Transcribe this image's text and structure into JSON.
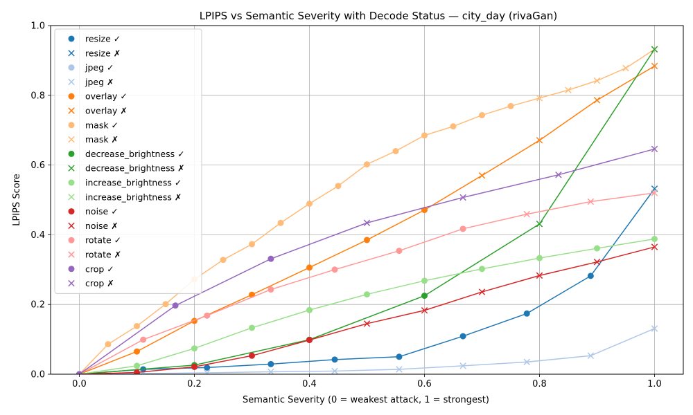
{
  "chart_data": {
    "type": "line",
    "title": "LPIPS vs Semantic Severity with Decode Status — city_day (rivaGan)",
    "xlabel": "Semantic Severity (0 = weakest attack, 1 = strongest)",
    "ylabel": "LPIPS Score",
    "xlim": [
      -0.05,
      1.05
    ],
    "ylim": [
      0,
      1.0
    ],
    "xticks": [
      "0.0",
      "0.2",
      "0.4",
      "0.6",
      "0.8",
      "1.0"
    ],
    "yticks": [
      "0.0",
      "0.2",
      "0.4",
      "0.6",
      "0.8",
      "1.0"
    ],
    "grid": true,
    "legend_position": "upper-left",
    "legend": [
      "resize ✓",
      "resize ✗",
      "jpeg ✓",
      "jpeg ✗",
      "overlay ✓",
      "overlay ✗",
      "mask ✓",
      "mask ✗",
      "decrease_brightness ✓",
      "decrease_brightness ✗",
      "increase_brightness ✓",
      "increase_brightness ✗",
      "noise ✓",
      "noise ✗",
      "rotate ✓",
      "rotate ✗",
      "crop ✓",
      "crop ✗"
    ],
    "series": [
      {
        "name": "resize",
        "color": "#1f77b4",
        "points": [
          {
            "x": 0.0,
            "y": 0.0,
            "ok": true
          },
          {
            "x": 0.111,
            "y": 0.014,
            "ok": true
          },
          {
            "x": 0.222,
            "y": 0.019,
            "ok": true
          },
          {
            "x": 0.333,
            "y": 0.029,
            "ok": true
          },
          {
            "x": 0.444,
            "y": 0.042,
            "ok": true
          },
          {
            "x": 0.556,
            "y": 0.05,
            "ok": true
          },
          {
            "x": 0.667,
            "y": 0.109,
            "ok": true
          },
          {
            "x": 0.778,
            "y": 0.174,
            "ok": true
          },
          {
            "x": 0.889,
            "y": 0.282,
            "ok": true
          },
          {
            "x": 1.0,
            "y": 0.532,
            "ok": false
          }
        ]
      },
      {
        "name": "jpeg",
        "color": "#aec7e8",
        "points": [
          {
            "x": 0.0,
            "y": 0.0,
            "ok": true
          },
          {
            "x": 0.111,
            "y": 0.002,
            "ok": false
          },
          {
            "x": 0.222,
            "y": 0.004,
            "ok": false
          },
          {
            "x": 0.333,
            "y": 0.007,
            "ok": false
          },
          {
            "x": 0.444,
            "y": 0.009,
            "ok": false
          },
          {
            "x": 0.556,
            "y": 0.014,
            "ok": false
          },
          {
            "x": 0.667,
            "y": 0.024,
            "ok": false
          },
          {
            "x": 0.778,
            "y": 0.035,
            "ok": false
          },
          {
            "x": 0.889,
            "y": 0.053,
            "ok": false
          },
          {
            "x": 1.0,
            "y": 0.131,
            "ok": false
          }
        ]
      },
      {
        "name": "overlay",
        "color": "#ff7f0e",
        "points": [
          {
            "x": 0.0,
            "y": 0.0,
            "ok": true
          },
          {
            "x": 0.1,
            "y": 0.065,
            "ok": true
          },
          {
            "x": 0.2,
            "y": 0.153,
            "ok": true
          },
          {
            "x": 0.3,
            "y": 0.228,
            "ok": true
          },
          {
            "x": 0.4,
            "y": 0.306,
            "ok": true
          },
          {
            "x": 0.5,
            "y": 0.385,
            "ok": true
          },
          {
            "x": 0.6,
            "y": 0.471,
            "ok": true
          },
          {
            "x": 0.7,
            "y": 0.57,
            "ok": false
          },
          {
            "x": 0.8,
            "y": 0.671,
            "ok": false
          },
          {
            "x": 0.9,
            "y": 0.786,
            "ok": false
          },
          {
            "x": 1.0,
            "y": 0.884,
            "ok": false
          }
        ]
      },
      {
        "name": "mask",
        "color": "#ffbb78",
        "points": [
          {
            "x": 0.0,
            "y": 0.0,
            "ok": true
          },
          {
            "x": 0.05,
            "y": 0.086,
            "ok": true
          },
          {
            "x": 0.1,
            "y": 0.138,
            "ok": true
          },
          {
            "x": 0.15,
            "y": 0.201,
            "ok": true
          },
          {
            "x": 0.2,
            "y": 0.272,
            "ok": true
          },
          {
            "x": 0.25,
            "y": 0.328,
            "ok": true
          },
          {
            "x": 0.3,
            "y": 0.373,
            "ok": true
          },
          {
            "x": 0.35,
            "y": 0.434,
            "ok": true
          },
          {
            "x": 0.4,
            "y": 0.489,
            "ok": true
          },
          {
            "x": 0.45,
            "y": 0.54,
            "ok": true
          },
          {
            "x": 0.5,
            "y": 0.602,
            "ok": true
          },
          {
            "x": 0.55,
            "y": 0.64,
            "ok": true
          },
          {
            "x": 0.6,
            "y": 0.685,
            "ok": true
          },
          {
            "x": 0.65,
            "y": 0.711,
            "ok": true
          },
          {
            "x": 0.7,
            "y": 0.743,
            "ok": true
          },
          {
            "x": 0.75,
            "y": 0.769,
            "ok": true
          },
          {
            "x": 0.8,
            "y": 0.792,
            "ok": false
          },
          {
            "x": 0.85,
            "y": 0.815,
            "ok": false
          },
          {
            "x": 0.9,
            "y": 0.842,
            "ok": false
          },
          {
            "x": 0.95,
            "y": 0.878,
            "ok": false
          },
          {
            "x": 1.0,
            "y": 0.932,
            "ok": false
          }
        ]
      },
      {
        "name": "decrease_brightness",
        "color": "#2ca02c",
        "points": [
          {
            "x": 0.0,
            "y": 0.0,
            "ok": true
          },
          {
            "x": 0.2,
            "y": 0.026,
            "ok": true
          },
          {
            "x": 0.4,
            "y": 0.099,
            "ok": true
          },
          {
            "x": 0.6,
            "y": 0.225,
            "ok": true
          },
          {
            "x": 0.8,
            "y": 0.431,
            "ok": false
          },
          {
            "x": 1.0,
            "y": 0.932,
            "ok": false
          }
        ]
      },
      {
        "name": "increase_brightness",
        "color": "#98df8a",
        "points": [
          {
            "x": 0.0,
            "y": 0.0,
            "ok": true
          },
          {
            "x": 0.1,
            "y": 0.024,
            "ok": true
          },
          {
            "x": 0.2,
            "y": 0.074,
            "ok": true
          },
          {
            "x": 0.3,
            "y": 0.133,
            "ok": true
          },
          {
            "x": 0.4,
            "y": 0.184,
            "ok": true
          },
          {
            "x": 0.5,
            "y": 0.229,
            "ok": true
          },
          {
            "x": 0.6,
            "y": 0.268,
            "ok": true
          },
          {
            "x": 0.7,
            "y": 0.302,
            "ok": true
          },
          {
            "x": 0.8,
            "y": 0.333,
            "ok": true
          },
          {
            "x": 0.9,
            "y": 0.361,
            "ok": true
          },
          {
            "x": 1.0,
            "y": 0.388,
            "ok": true
          }
        ]
      },
      {
        "name": "noise",
        "color": "#d62728",
        "points": [
          {
            "x": 0.0,
            "y": 0.0,
            "ok": true
          },
          {
            "x": 0.1,
            "y": 0.005,
            "ok": true
          },
          {
            "x": 0.2,
            "y": 0.021,
            "ok": true
          },
          {
            "x": 0.3,
            "y": 0.053,
            "ok": true
          },
          {
            "x": 0.4,
            "y": 0.098,
            "ok": true
          },
          {
            "x": 0.5,
            "y": 0.145,
            "ok": false
          },
          {
            "x": 0.6,
            "y": 0.183,
            "ok": false
          },
          {
            "x": 0.7,
            "y": 0.236,
            "ok": false
          },
          {
            "x": 0.8,
            "y": 0.283,
            "ok": false
          },
          {
            "x": 0.9,
            "y": 0.322,
            "ok": false
          },
          {
            "x": 1.0,
            "y": 0.365,
            "ok": false
          }
        ]
      },
      {
        "name": "rotate",
        "color": "#ff9896",
        "points": [
          {
            "x": 0.0,
            "y": 0.0,
            "ok": true
          },
          {
            "x": 0.111,
            "y": 0.099,
            "ok": true
          },
          {
            "x": 0.222,
            "y": 0.168,
            "ok": true
          },
          {
            "x": 0.333,
            "y": 0.243,
            "ok": true
          },
          {
            "x": 0.444,
            "y": 0.3,
            "ok": true
          },
          {
            "x": 0.556,
            "y": 0.354,
            "ok": true
          },
          {
            "x": 0.667,
            "y": 0.417,
            "ok": true
          },
          {
            "x": 0.778,
            "y": 0.459,
            "ok": false
          },
          {
            "x": 0.889,
            "y": 0.495,
            "ok": false
          },
          {
            "x": 1.0,
            "y": 0.52,
            "ok": false
          }
        ]
      },
      {
        "name": "crop",
        "color": "#9467bd",
        "points": [
          {
            "x": 0.0,
            "y": 0.0,
            "ok": true
          },
          {
            "x": 0.167,
            "y": 0.197,
            "ok": true
          },
          {
            "x": 0.333,
            "y": 0.331,
            "ok": true
          },
          {
            "x": 0.5,
            "y": 0.434,
            "ok": false
          },
          {
            "x": 0.667,
            "y": 0.507,
            "ok": false
          },
          {
            "x": 0.833,
            "y": 0.572,
            "ok": false
          },
          {
            "x": 1.0,
            "y": 0.646,
            "ok": false
          }
        ]
      }
    ]
  }
}
